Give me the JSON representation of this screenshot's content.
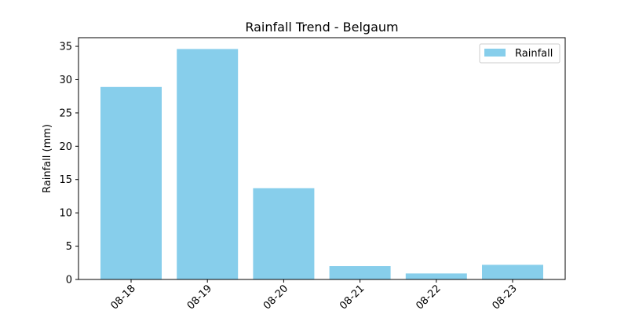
{
  "chart_data": {
    "type": "bar",
    "title": "Rainfall Trend - Belgaum",
    "xlabel": "",
    "ylabel": "Rainfall (mm)",
    "categories": [
      "08-18",
      "08-19",
      "08-20",
      "08-21",
      "08-22",
      "08-23"
    ],
    "series": [
      {
        "name": "Rainfall",
        "values": [
          28.9,
          34.6,
          13.7,
          2.0,
          0.9,
          2.2
        ],
        "color": "#87CEEB"
      }
    ],
    "ylim": [
      0,
      36.3
    ],
    "yticks": [
      0,
      5,
      10,
      15,
      20,
      25,
      30,
      35
    ],
    "grid": false,
    "legend": "top-right"
  }
}
